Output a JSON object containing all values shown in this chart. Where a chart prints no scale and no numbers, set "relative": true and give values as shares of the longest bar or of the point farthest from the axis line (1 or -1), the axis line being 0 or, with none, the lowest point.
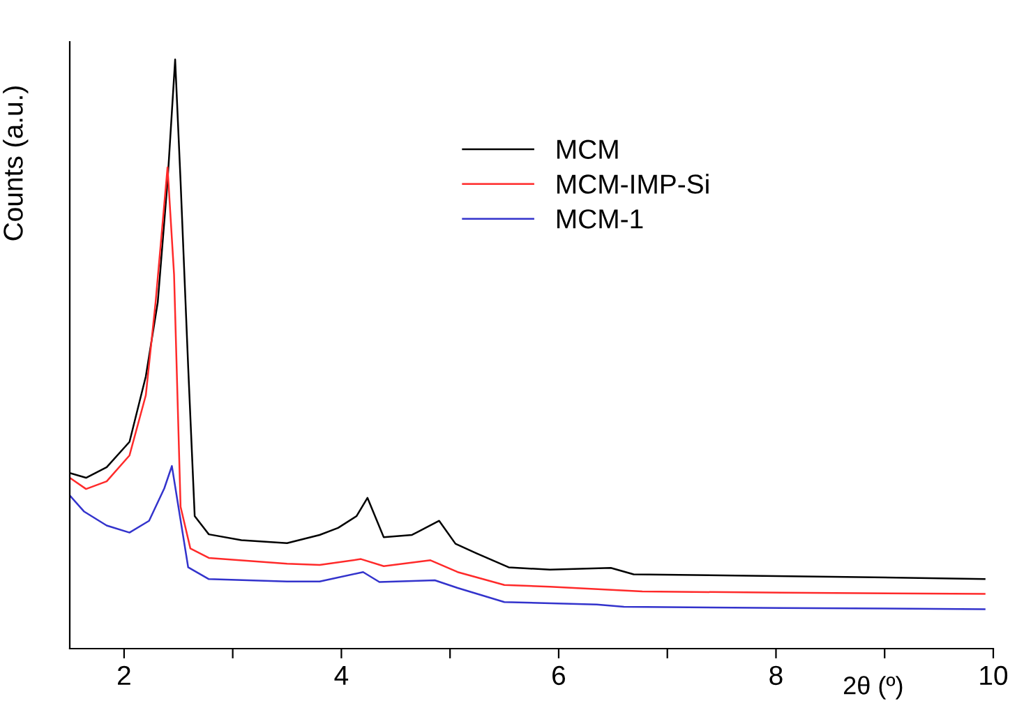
{
  "chart_data": {
    "type": "line",
    "relative": true,
    "xlabel": "2θ (º)",
    "ylabel": "Counts (a.u.)",
    "xlim": [
      1.5,
      10
    ],
    "xticks": [
      2,
      {
        "value": 3,
        "label": null
      },
      4,
      {
        "value": 5,
        "label": null
      },
      6,
      {
        "value": 7,
        "label": null
      },
      8,
      {
        "value": 9,
        "label": null
      },
      10
    ],
    "legend": "top right",
    "grid": false,
    "marker": "none",
    "line_style": "solid",
    "tick_labels": "x",
    "series": [
      {
        "name": "MCM",
        "color": "#000000",
        "x": [
          1.5,
          1.65,
          1.84,
          2.05,
          2.2,
          2.31,
          2.4,
          2.47,
          2.52,
          2.59,
          2.65,
          2.78,
          3.08,
          3.5,
          3.8,
          3.97,
          4.14,
          4.24,
          4.39,
          4.65,
          4.9,
          5.05,
          5.24,
          5.54,
          5.92,
          6.48,
          6.69,
          7.63,
          8.9,
          9.92
        ],
        "values": [
          0.298,
          0.29,
          0.308,
          0.351,
          0.462,
          0.588,
          0.793,
          1.0,
          0.793,
          0.478,
          0.225,
          0.194,
          0.184,
          0.179,
          0.193,
          0.205,
          0.225,
          0.256,
          0.189,
          0.193,
          0.217,
          0.178,
          0.162,
          0.138,
          0.134,
          0.137,
          0.126,
          0.124,
          0.121,
          0.118
        ]
      },
      {
        "name": "MCM-IMP-Si",
        "color": "#ff2a2a",
        "x": [
          1.5,
          1.65,
          1.84,
          2.05,
          2.2,
          2.29,
          2.4,
          2.46,
          2.52,
          2.61,
          2.78,
          3.5,
          3.8,
          4.18,
          4.39,
          4.82,
          5.07,
          5.5,
          5.92,
          6.77,
          8.05,
          9.92
        ],
        "values": [
          0.29,
          0.271,
          0.284,
          0.328,
          0.43,
          0.588,
          0.817,
          0.635,
          0.241,
          0.17,
          0.154,
          0.144,
          0.142,
          0.152,
          0.14,
          0.15,
          0.13,
          0.108,
          0.105,
          0.097,
          0.095,
          0.093
        ]
      },
      {
        "name": "MCM-1",
        "color": "#3333cc",
        "x": [
          1.5,
          1.63,
          1.84,
          2.05,
          2.23,
          2.37,
          2.44,
          2.5,
          2.59,
          2.78,
          3.5,
          3.8,
          4.2,
          4.35,
          4.86,
          5.07,
          5.5,
          6.35,
          6.6,
          8.05,
          9.92
        ],
        "values": [
          0.26,
          0.233,
          0.209,
          0.197,
          0.217,
          0.272,
          0.31,
          0.241,
          0.138,
          0.118,
          0.114,
          0.114,
          0.13,
          0.113,
          0.116,
          0.103,
          0.079,
          0.075,
          0.071,
          0.069,
          0.067
        ]
      }
    ]
  }
}
